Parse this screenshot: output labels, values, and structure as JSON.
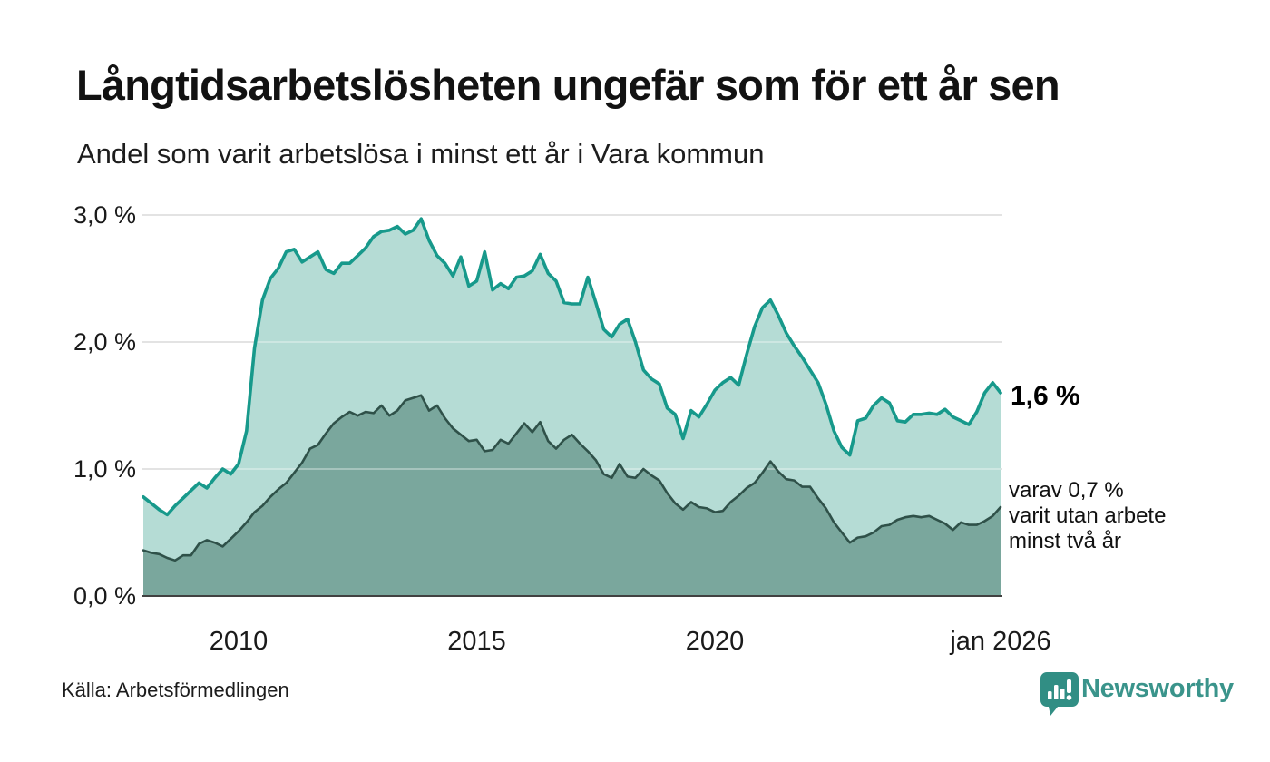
{
  "header": {
    "title": "Långtidsarbetslösheten ungefär som för ett år sen",
    "subtitle": "Andel som varit arbetslösa i minst ett år i Vara kommun"
  },
  "chart_data": {
    "type": "area",
    "title": "Långtidsarbetslösheten ungefär som för ett år sen",
    "subtitle": "Andel som varit arbetslösa i minst ett år i Vara kommun",
    "xlabel": "",
    "ylabel": "",
    "x_start": "jan 2008",
    "x_end": "jan 2026",
    "x_interval_months": 2,
    "ylim": [
      0,
      3.0
    ],
    "grid": true,
    "legend_position": "none",
    "yticks": [
      {
        "label": "0,0 %",
        "value": 0
      },
      {
        "label": "1,0 %",
        "value": 1
      },
      {
        "label": "2,0 %",
        "value": 2
      },
      {
        "label": "3,0 %",
        "value": 3
      }
    ],
    "xticks": [
      {
        "label": "2010",
        "year": 2010
      },
      {
        "label": "2015",
        "year": 2015
      },
      {
        "label": "2020",
        "year": 2020
      },
      {
        "label": "jan 2026",
        "year": 2026
      }
    ],
    "series": [
      {
        "name": "Andel arbetslösa minst ett år",
        "end_value_label": "1,6 %",
        "stroke": "#17998b",
        "fill": "#b5dcd5",
        "values": [
          0.78,
          0.73,
          0.68,
          0.64,
          0.71,
          0.77,
          0.83,
          0.89,
          0.85,
          0.93,
          1.0,
          0.96,
          1.04,
          1.3,
          1.95,
          2.33,
          2.5,
          2.58,
          2.71,
          2.73,
          2.63,
          2.67,
          2.71,
          2.57,
          2.54,
          2.62,
          2.62,
          2.68,
          2.74,
          2.83,
          2.87,
          2.88,
          2.91,
          2.85,
          2.88,
          2.97,
          2.8,
          2.68,
          2.62,
          2.52,
          2.67,
          2.44,
          2.48,
          2.71,
          2.41,
          2.46,
          2.42,
          2.51,
          2.52,
          2.56,
          2.69,
          2.54,
          2.48,
          2.31,
          2.3,
          2.3,
          2.51,
          2.31,
          2.1,
          2.04,
          2.14,
          2.18,
          2.0,
          1.78,
          1.71,
          1.67,
          1.48,
          1.43,
          1.24,
          1.46,
          1.41,
          1.51,
          1.62,
          1.68,
          1.72,
          1.66,
          1.9,
          2.12,
          2.27,
          2.33,
          2.21,
          2.07,
          1.97,
          1.88,
          1.78,
          1.68,
          1.51,
          1.3,
          1.17,
          1.11,
          1.38,
          1.4,
          1.5,
          1.56,
          1.52,
          1.38,
          1.37,
          1.43,
          1.43,
          1.44,
          1.43,
          1.47,
          1.41,
          1.38,
          1.35,
          1.45,
          1.6,
          1.68,
          1.6
        ]
      },
      {
        "name": "Andel utan arbete minst två år",
        "end_value_label": "0,7 %",
        "stroke": "#2f5149",
        "fill": "#7aa79d",
        "values": [
          0.36,
          0.34,
          0.33,
          0.3,
          0.28,
          0.32,
          0.32,
          0.41,
          0.44,
          0.42,
          0.39,
          0.45,
          0.51,
          0.58,
          0.66,
          0.71,
          0.78,
          0.84,
          0.89,
          0.97,
          1.05,
          1.16,
          1.19,
          1.28,
          1.36,
          1.41,
          1.45,
          1.42,
          1.45,
          1.44,
          1.5,
          1.42,
          1.46,
          1.54,
          1.56,
          1.58,
          1.46,
          1.5,
          1.4,
          1.32,
          1.27,
          1.22,
          1.23,
          1.14,
          1.15,
          1.23,
          1.2,
          1.28,
          1.36,
          1.29,
          1.37,
          1.22,
          1.16,
          1.23,
          1.27,
          1.2,
          1.14,
          1.07,
          0.96,
          0.93,
          1.04,
          0.94,
          0.93,
          1.0,
          0.95,
          0.91,
          0.81,
          0.73,
          0.68,
          0.74,
          0.7,
          0.69,
          0.66,
          0.67,
          0.74,
          0.79,
          0.85,
          0.89,
          0.97,
          1.06,
          0.98,
          0.92,
          0.91,
          0.86,
          0.86,
          0.77,
          0.69,
          0.58,
          0.5,
          0.42,
          0.46,
          0.47,
          0.5,
          0.55,
          0.56,
          0.6,
          0.62,
          0.63,
          0.62,
          0.63,
          0.6,
          0.57,
          0.52,
          0.58,
          0.56,
          0.56,
          0.59,
          0.63,
          0.7
        ]
      }
    ]
  },
  "annotations": {
    "end_value": "1,6 %",
    "sub_lines": [
      "varav 0,7 %",
      "varit utan arbete",
      "minst två år"
    ]
  },
  "footer": {
    "source": "Källa: Arbetsförmedlingen",
    "brand": "Newsworthy"
  },
  "colors": {
    "series1_stroke": "#17998b",
    "series1_fill": "#b5dcd5",
    "series2_stroke": "#2f5149",
    "series2_fill": "#7aa79d",
    "gridline": "#d6d6d6",
    "axis_line": "#414141",
    "brand_teal": "#3a948b",
    "text": "#111111"
  }
}
